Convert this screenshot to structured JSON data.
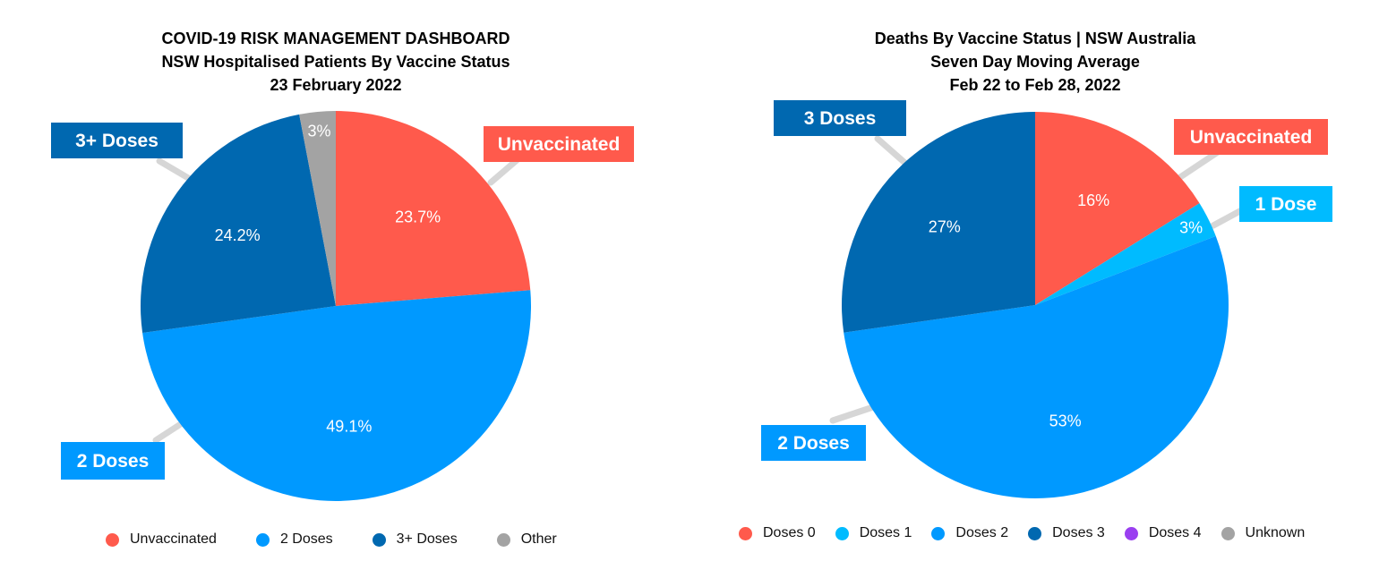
{
  "chart_data": [
    {
      "type": "pie",
      "title_lines": [
        "COVID-19 RISK MANAGEMENT DASHBOARD",
        "NSW Hospitalised Patients By Vaccine Status",
        "23 February 2022"
      ],
      "slices": [
        {
          "name": "Unvaccinated",
          "value": 23.7,
          "label": "23.7%",
          "color": "#ff5a4c",
          "callout": "Unvaccinated"
        },
        {
          "name": "2 Doses",
          "value": 49.1,
          "label": "49.1%",
          "color": "#0099ff",
          "callout": "2 Doses"
        },
        {
          "name": "3+ Doses",
          "value": 24.2,
          "label": "24.2%",
          "color": "#0068b0",
          "callout": "3+ Doses"
        },
        {
          "name": "Other",
          "value": 3.0,
          "label": "3%",
          "color": "#a3a3a3",
          "callout": ""
        }
      ],
      "legend": [
        {
          "label": "Unvaccinated",
          "color": "#ff5a4c"
        },
        {
          "label": "2 Doses",
          "color": "#0099ff"
        },
        {
          "label": "3+ Doses",
          "color": "#0068b0"
        },
        {
          "label": "Other",
          "color": "#a3a3a3"
        }
      ],
      "legend_placement": "bottom"
    },
    {
      "type": "pie",
      "title_lines": [
        "Deaths By Vaccine Status | NSW Australia",
        "Seven Day Moving Average",
        "Feb 22 to Feb 28, 2022"
      ],
      "slices": [
        {
          "name": "Doses 0",
          "value": 16,
          "label": "16%",
          "color": "#ff5a4c",
          "callout": "Unvaccinated"
        },
        {
          "name": "Doses 1",
          "value": 3,
          "label": "3%",
          "color": "#00bbff",
          "callout": "1 Dose"
        },
        {
          "name": "Doses 2",
          "value": 53,
          "label": "53%",
          "color": "#0099ff",
          "callout": "2 Doses"
        },
        {
          "name": "Doses 3",
          "value": 27,
          "label": "27%",
          "color": "#0068b0",
          "callout": "3 Doses"
        }
      ],
      "legend": [
        {
          "label": "Doses 0",
          "color": "#ff5a4c"
        },
        {
          "label": "Doses 1",
          "color": "#00bbff"
        },
        {
          "label": "Doses 2",
          "color": "#0099ff"
        },
        {
          "label": "Doses 3",
          "color": "#0068b0"
        },
        {
          "label": "Doses 4",
          "color": "#9a3ff0"
        },
        {
          "label": "Unknown",
          "color": "#a3a3a3"
        }
      ],
      "legend_placement": "bottom"
    }
  ]
}
